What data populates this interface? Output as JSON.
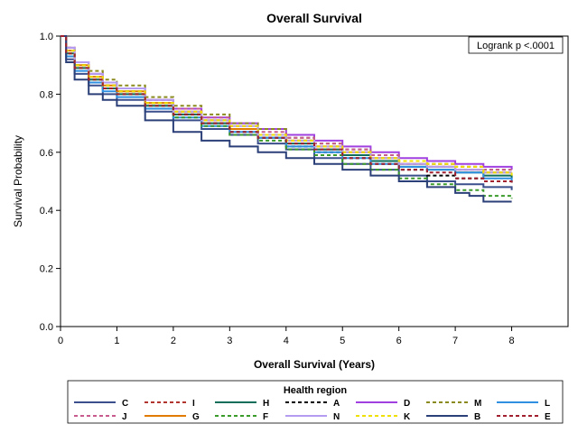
{
  "chart_data": {
    "type": "line",
    "title": "Overall Survival",
    "xlabel": "Overall Survival (Years)",
    "ylabel": "Survival Probability",
    "xlim": [
      0,
      9
    ],
    "ylim": [
      0,
      1
    ],
    "x_ticks": [
      "0",
      "1",
      "2",
      "3",
      "4",
      "5",
      "6",
      "7",
      "8"
    ],
    "y_ticks": [
      "0.0",
      "0.2",
      "0.4",
      "0.6",
      "0.8",
      "1.0"
    ],
    "annotation": "Logrank p <.0001",
    "legend_title": "Health region",
    "legend_position": "bottom",
    "grid": false,
    "series": [
      {
        "name": "C",
        "color": "#3a4f8c",
        "dash": "solid",
        "x": [
          0,
          0.1,
          0.25,
          0.5,
          0.75,
          1,
          1.5,
          2,
          2.5,
          3,
          3.5,
          4,
          4.5,
          5,
          5.5,
          6,
          6.5,
          7,
          7.5,
          8
        ],
        "y": [
          1.0,
          0.92,
          0.87,
          0.83,
          0.8,
          0.78,
          0.74,
          0.71,
          0.68,
          0.66,
          0.63,
          0.61,
          0.58,
          0.56,
          0.54,
          0.52,
          0.5,
          0.49,
          0.48,
          0.47
        ]
      },
      {
        "name": "I",
        "color": "#b2342e",
        "dash": "dashed",
        "x": [
          0,
          0.1,
          0.25,
          0.5,
          0.75,
          1,
          1.5,
          2,
          2.5,
          3,
          3.5,
          4,
          4.5,
          5,
          5.5,
          6,
          6.5,
          7,
          7.5,
          8
        ],
        "y": [
          1.0,
          0.95,
          0.9,
          0.86,
          0.83,
          0.81,
          0.77,
          0.74,
          0.71,
          0.68,
          0.66,
          0.64,
          0.62,
          0.6,
          0.58,
          0.56,
          0.55,
          0.54,
          0.53,
          0.53
        ]
      },
      {
        "name": "H",
        "color": "#0f6e5a",
        "dash": "solid",
        "x": [
          0,
          0.1,
          0.25,
          0.5,
          0.75,
          1,
          1.5,
          2,
          2.5,
          3,
          3.5,
          4,
          4.5,
          5,
          5.5,
          6,
          6.5,
          7,
          7.5,
          8
        ],
        "y": [
          1.0,
          0.94,
          0.89,
          0.85,
          0.82,
          0.8,
          0.76,
          0.73,
          0.7,
          0.68,
          0.65,
          0.63,
          0.61,
          0.59,
          0.57,
          0.55,
          0.54,
          0.53,
          0.52,
          0.51
        ]
      },
      {
        "name": "A",
        "color": "#000000",
        "dash": "dashed",
        "x": [
          0,
          0.1,
          0.25,
          0.5,
          0.75,
          1,
          1.5,
          2,
          2.5,
          3,
          3.5,
          4,
          4.5,
          5,
          5.5,
          6,
          6.5,
          7,
          7.5,
          8
        ],
        "y": [
          1.0,
          0.95,
          0.9,
          0.86,
          0.83,
          0.81,
          0.77,
          0.73,
          0.7,
          0.67,
          0.65,
          0.62,
          0.6,
          0.58,
          0.56,
          0.54,
          0.52,
          0.51,
          0.5,
          0.49
        ]
      },
      {
        "name": "D",
        "color": "#a040e0",
        "dash": "solid",
        "x": [
          0,
          0.1,
          0.25,
          0.5,
          0.75,
          1,
          1.5,
          2,
          2.5,
          3,
          3.5,
          4,
          4.5,
          5,
          5.5,
          6,
          6.5,
          7,
          7.5,
          8
        ],
        "y": [
          1.0,
          0.96,
          0.91,
          0.87,
          0.84,
          0.82,
          0.78,
          0.75,
          0.72,
          0.7,
          0.68,
          0.66,
          0.64,
          0.62,
          0.6,
          0.58,
          0.57,
          0.56,
          0.55,
          0.54
        ]
      },
      {
        "name": "M",
        "color": "#8a8a1e",
        "dash": "dashed",
        "x": [
          0,
          0.1,
          0.25,
          0.5,
          0.75,
          1,
          1.5,
          2,
          2.5,
          3,
          3.5,
          4,
          4.5,
          5,
          5.5,
          6,
          6.5,
          7,
          7.5,
          8
        ],
        "y": [
          1.0,
          0.96,
          0.91,
          0.88,
          0.85,
          0.83,
          0.79,
          0.76,
          0.73,
          0.7,
          0.68,
          0.65,
          0.63,
          0.61,
          0.59,
          0.57,
          0.56,
          0.55,
          0.54,
          0.54
        ]
      },
      {
        "name": "L",
        "color": "#2f8fe0",
        "dash": "solid",
        "x": [
          0,
          0.1,
          0.25,
          0.5,
          0.75,
          1,
          1.5,
          2,
          2.5,
          3,
          3.5,
          4,
          4.5,
          5,
          5.5,
          6,
          6.5,
          7,
          7.5,
          8
        ],
        "y": [
          1.0,
          0.93,
          0.88,
          0.84,
          0.81,
          0.79,
          0.75,
          0.72,
          0.69,
          0.67,
          0.65,
          0.62,
          0.6,
          0.58,
          0.56,
          0.55,
          0.54,
          0.53,
          0.51,
          0.5
        ]
      },
      {
        "name": "J",
        "color": "#c75b8e",
        "dash": "dashed",
        "x": [
          0,
          0.1,
          0.25,
          0.5,
          0.75,
          1,
          1.5,
          2,
          2.5,
          3,
          3.5,
          4,
          4.5,
          5,
          5.5,
          6,
          6.5,
          7,
          7.5,
          8
        ],
        "y": [
          1.0,
          0.96,
          0.91,
          0.87,
          0.84,
          0.82,
          0.78,
          0.75,
          0.72,
          0.69,
          0.67,
          0.65,
          0.63,
          0.61,
          0.59,
          0.57,
          0.56,
          0.55,
          0.54,
          0.54
        ]
      },
      {
        "name": "G",
        "color": "#e07b00",
        "dash": "solid",
        "x": [
          0,
          0.1,
          0.25,
          0.5,
          0.75,
          1,
          1.5,
          2,
          2.5,
          3,
          3.5,
          4,
          4.5,
          5,
          5.5,
          6,
          6.5,
          7,
          7.5,
          8
        ],
        "y": [
          1.0,
          0.95,
          0.9,
          0.86,
          0.83,
          0.81,
          0.77,
          0.74,
          0.71,
          0.68,
          0.66,
          0.64,
          0.62,
          0.6,
          0.58,
          0.56,
          0.55,
          0.54,
          0.53,
          0.53
        ]
      },
      {
        "name": "F",
        "color": "#3a9a2a",
        "dash": "dashed",
        "x": [
          0,
          0.1,
          0.25,
          0.5,
          0.75,
          1,
          1.5,
          2,
          2.5,
          3,
          3.5,
          4,
          4.5,
          5,
          5.5,
          6,
          6.5,
          7,
          7.5,
          8
        ],
        "y": [
          1.0,
          0.94,
          0.89,
          0.85,
          0.82,
          0.8,
          0.76,
          0.72,
          0.69,
          0.66,
          0.64,
          0.61,
          0.59,
          0.56,
          0.54,
          0.51,
          0.49,
          0.47,
          0.45,
          0.44
        ]
      },
      {
        "name": "N",
        "color": "#b49cf0",
        "dash": "solid",
        "x": [
          0,
          0.1,
          0.25,
          0.5,
          0.75,
          1,
          1.5,
          2,
          2.5,
          3,
          3.5,
          4,
          4.5,
          5,
          5.5,
          6,
          6.5,
          7,
          7.5,
          8
        ],
        "y": [
          1.0,
          0.96,
          0.91,
          0.87,
          0.84,
          0.82,
          0.78,
          0.74,
          0.71,
          0.69,
          0.66,
          0.64,
          0.62,
          0.6,
          0.58,
          0.56,
          0.55,
          0.54,
          0.53,
          0.53
        ]
      },
      {
        "name": "K",
        "color": "#f0e000",
        "dash": "dashed",
        "x": [
          0,
          0.1,
          0.25,
          0.5,
          0.75,
          1,
          1.5,
          2,
          2.5,
          3,
          3.5,
          4,
          4.5,
          5,
          5.5,
          6,
          6.5,
          7,
          7.5,
          8
        ],
        "y": [
          1.0,
          0.95,
          0.9,
          0.86,
          0.83,
          0.81,
          0.77,
          0.74,
          0.71,
          0.69,
          0.66,
          0.64,
          0.62,
          0.6,
          0.58,
          0.57,
          0.56,
          0.55,
          0.53,
          0.52
        ]
      },
      {
        "name": "B",
        "color": "#2b3f78",
        "dash": "solid",
        "x": [
          0,
          0.1,
          0.25,
          0.5,
          0.75,
          1,
          1.5,
          2,
          2.5,
          3,
          3.5,
          4,
          4.5,
          5,
          5.5,
          6,
          6.5,
          7,
          7.25,
          7.5,
          8
        ],
        "y": [
          1.0,
          0.91,
          0.85,
          0.8,
          0.78,
          0.76,
          0.71,
          0.67,
          0.64,
          0.62,
          0.6,
          0.58,
          0.56,
          0.54,
          0.52,
          0.5,
          0.48,
          0.46,
          0.45,
          0.43,
          0.43
        ]
      },
      {
        "name": "E",
        "color": "#a02030",
        "dash": "dashed",
        "x": [
          0,
          0.1,
          0.25,
          0.5,
          0.75,
          1,
          1.5,
          2,
          2.5,
          3,
          3.5,
          4,
          4.5,
          5,
          5.5,
          6,
          6.5,
          7,
          7.5,
          8
        ],
        "y": [
          1.0,
          0.94,
          0.89,
          0.85,
          0.82,
          0.8,
          0.76,
          0.73,
          0.7,
          0.67,
          0.65,
          0.63,
          0.61,
          0.58,
          0.56,
          0.54,
          0.53,
          0.51,
          0.5,
          0.49
        ]
      }
    ]
  }
}
